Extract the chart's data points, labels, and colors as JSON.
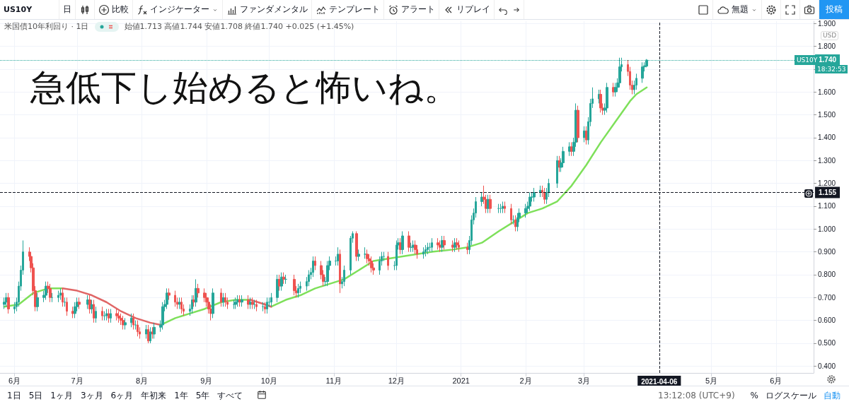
{
  "chart_data": {
    "type": "candlestick",
    "title": "急低下し始めると怖いね。",
    "subtitle": "米国債10年利回り · 1日",
    "x": [
      "2020-05-27",
      "2020-05-28",
      "2020-05-29",
      "2020-06-01",
      "2020-06-02",
      "2020-06-03",
      "2020-06-04",
      "2020-06-05",
      "2020-06-08",
      "2020-06-09",
      "2020-06-10",
      "2020-06-11",
      "2020-06-12",
      "2020-06-15",
      "2020-06-16",
      "2020-06-17",
      "2020-06-18",
      "2020-06-19",
      "2020-06-22",
      "2020-06-23",
      "2020-06-24",
      "2020-06-25",
      "2020-06-26",
      "2020-06-29",
      "2020-06-30",
      "2020-07-01",
      "2020-07-02",
      "2020-07-06",
      "2020-07-07",
      "2020-07-08",
      "2020-07-09",
      "2020-07-10",
      "2020-07-13",
      "2020-07-14",
      "2020-07-15",
      "2020-07-16",
      "2020-07-17",
      "2020-07-20",
      "2020-07-21",
      "2020-07-22",
      "2020-07-23",
      "2020-07-24",
      "2020-07-27",
      "2020-07-28",
      "2020-07-29",
      "2020-07-30",
      "2020-07-31",
      "2020-08-03",
      "2020-08-04",
      "2020-08-05",
      "2020-08-06",
      "2020-08-07",
      "2020-08-10",
      "2020-08-11",
      "2020-08-12",
      "2020-08-13",
      "2020-08-14",
      "2020-08-17",
      "2020-08-18",
      "2020-08-19",
      "2020-08-20",
      "2020-08-21",
      "2020-08-24",
      "2020-08-25",
      "2020-08-26",
      "2020-08-27",
      "2020-08-28",
      "2020-08-31",
      "2020-09-01",
      "2020-09-02",
      "2020-09-03",
      "2020-09-04",
      "2020-09-08",
      "2020-09-09",
      "2020-09-10",
      "2020-09-11",
      "2020-09-14",
      "2020-09-15",
      "2020-09-16",
      "2020-09-17",
      "2020-09-18",
      "2020-09-21",
      "2020-09-22",
      "2020-09-23",
      "2020-09-24",
      "2020-09-25",
      "2020-09-28",
      "2020-09-29",
      "2020-09-30",
      "2020-10-01",
      "2020-10-02",
      "2020-10-05",
      "2020-10-06",
      "2020-10-07",
      "2020-10-08",
      "2020-10-09",
      "2020-10-13",
      "2020-10-14",
      "2020-10-15",
      "2020-10-16",
      "2020-10-19",
      "2020-10-20",
      "2020-10-21",
      "2020-10-22",
      "2020-10-23",
      "2020-10-26",
      "2020-10-27",
      "2020-10-28",
      "2020-10-29",
      "2020-10-30",
      "2020-11-02",
      "2020-11-03",
      "2020-11-04",
      "2020-11-05",
      "2020-11-06",
      "2020-11-09",
      "2020-11-10",
      "2020-11-12",
      "2020-11-13",
      "2020-11-16",
      "2020-11-17",
      "2020-11-18",
      "2020-11-19",
      "2020-11-20",
      "2020-11-23",
      "2020-11-24",
      "2020-11-25",
      "2020-11-27",
      "2020-11-30",
      "2020-12-01",
      "2020-12-02",
      "2020-12-03",
      "2020-12-04",
      "2020-12-07",
      "2020-12-08",
      "2020-12-09",
      "2020-12-10",
      "2020-12-11",
      "2020-12-14",
      "2020-12-15",
      "2020-12-16",
      "2020-12-17",
      "2020-12-18",
      "2020-12-21",
      "2020-12-22",
      "2020-12-23",
      "2020-12-24",
      "2020-12-28",
      "2020-12-29",
      "2020-12-30",
      "2020-12-31",
      "2021-01-04",
      "2021-01-05",
      "2021-01-06",
      "2021-01-07",
      "2021-01-08",
      "2021-01-11",
      "2021-01-12",
      "2021-01-13",
      "2021-01-14",
      "2021-01-15",
      "2021-01-19",
      "2021-01-20",
      "2021-01-21",
      "2021-01-22",
      "2021-01-25",
      "2021-01-26",
      "2021-01-27",
      "2021-01-28",
      "2021-01-29",
      "2021-02-01",
      "2021-02-02",
      "2021-02-03",
      "2021-02-04",
      "2021-02-05",
      "2021-02-08",
      "2021-02-09",
      "2021-02-10",
      "2021-02-11",
      "2021-02-12",
      "2021-02-16",
      "2021-02-17",
      "2021-02-18",
      "2021-02-19",
      "2021-02-22",
      "2021-02-23",
      "2021-02-24",
      "2021-02-25",
      "2021-02-26",
      "2021-03-01",
      "2021-03-02",
      "2021-03-03",
      "2021-03-04",
      "2021-03-05",
      "2021-03-08",
      "2021-03-09",
      "2021-03-10",
      "2021-03-11",
      "2021-03-12",
      "2021-03-15",
      "2021-03-16",
      "2021-03-17",
      "2021-03-18",
      "2021-03-19",
      "2021-03-22",
      "2021-03-23",
      "2021-03-24",
      "2021-03-25",
      "2021-03-26",
      "2021-03-29",
      "2021-03-30",
      "2021-03-31"
    ],
    "ohlc": [
      [
        0.67,
        0.7,
        0.65,
        0.68
      ],
      [
        0.68,
        0.72,
        0.66,
        0.7
      ],
      [
        0.7,
        0.72,
        0.63,
        0.65
      ],
      [
        0.65,
        0.68,
        0.63,
        0.66
      ],
      [
        0.66,
        0.7,
        0.64,
        0.68
      ],
      [
        0.68,
        0.77,
        0.66,
        0.75
      ],
      [
        0.75,
        0.84,
        0.73,
        0.82
      ],
      [
        0.82,
        0.95,
        0.8,
        0.9
      ],
      [
        0.9,
        0.92,
        0.86,
        0.88
      ],
      [
        0.88,
        0.9,
        0.81,
        0.83
      ],
      [
        0.83,
        0.85,
        0.71,
        0.73
      ],
      [
        0.73,
        0.75,
        0.64,
        0.66
      ],
      [
        0.66,
        0.72,
        0.64,
        0.7
      ],
      [
        0.7,
        0.73,
        0.68,
        0.71
      ],
      [
        0.71,
        0.77,
        0.69,
        0.75
      ],
      [
        0.75,
        0.77,
        0.72,
        0.74
      ],
      [
        0.74,
        0.76,
        0.68,
        0.7
      ],
      [
        0.7,
        0.72,
        0.68,
        0.7
      ],
      [
        0.7,
        0.73,
        0.68,
        0.71
      ],
      [
        0.71,
        0.74,
        0.69,
        0.72
      ],
      [
        0.72,
        0.74,
        0.66,
        0.68
      ],
      [
        0.68,
        0.7,
        0.66,
        0.68
      ],
      [
        0.68,
        0.7,
        0.62,
        0.64
      ],
      [
        0.64,
        0.66,
        0.61,
        0.63
      ],
      [
        0.63,
        0.68,
        0.61,
        0.66
      ],
      [
        0.66,
        0.7,
        0.64,
        0.68
      ],
      [
        0.68,
        0.7,
        0.65,
        0.67
      ],
      [
        0.67,
        0.71,
        0.65,
        0.69
      ],
      [
        0.69,
        0.71,
        0.63,
        0.65
      ],
      [
        0.65,
        0.69,
        0.63,
        0.67
      ],
      [
        0.67,
        0.69,
        0.59,
        0.61
      ],
      [
        0.61,
        0.66,
        0.59,
        0.64
      ],
      [
        0.64,
        0.66,
        0.6,
        0.62
      ],
      [
        0.62,
        0.64,
        0.6,
        0.62
      ],
      [
        0.62,
        0.65,
        0.6,
        0.63
      ],
      [
        0.63,
        0.65,
        0.59,
        0.61
      ],
      [
        0.61,
        0.65,
        0.59,
        0.63
      ],
      [
        0.63,
        0.65,
        0.6,
        0.62
      ],
      [
        0.62,
        0.64,
        0.59,
        0.61
      ],
      [
        0.61,
        0.63,
        0.58,
        0.6
      ],
      [
        0.6,
        0.62,
        0.56,
        0.58
      ],
      [
        0.58,
        0.61,
        0.56,
        0.59
      ],
      [
        0.59,
        0.63,
        0.57,
        0.61
      ],
      [
        0.61,
        0.63,
        0.56,
        0.58
      ],
      [
        0.58,
        0.6,
        0.56,
        0.58
      ],
      [
        0.58,
        0.6,
        0.53,
        0.55
      ],
      [
        0.55,
        0.57,
        0.52,
        0.54
      ],
      [
        0.54,
        0.58,
        0.52,
        0.56
      ],
      [
        0.56,
        0.58,
        0.5,
        0.51
      ],
      [
        0.51,
        0.57,
        0.5,
        0.55
      ],
      [
        0.55,
        0.57,
        0.52,
        0.54
      ],
      [
        0.54,
        0.59,
        0.52,
        0.57
      ],
      [
        0.57,
        0.6,
        0.55,
        0.58
      ],
      [
        0.58,
        0.68,
        0.56,
        0.66
      ],
      [
        0.66,
        0.69,
        0.64,
        0.67
      ],
      [
        0.67,
        0.74,
        0.65,
        0.72
      ],
      [
        0.72,
        0.74,
        0.69,
        0.71
      ],
      [
        0.71,
        0.73,
        0.66,
        0.68
      ],
      [
        0.68,
        0.7,
        0.65,
        0.67
      ],
      [
        0.67,
        0.7,
        0.65,
        0.68
      ],
      [
        0.68,
        0.7,
        0.63,
        0.65
      ],
      [
        0.65,
        0.67,
        0.62,
        0.64
      ],
      [
        0.64,
        0.67,
        0.62,
        0.65
      ],
      [
        0.65,
        0.71,
        0.63,
        0.69
      ],
      [
        0.69,
        0.71,
        0.66,
        0.68
      ],
      [
        0.68,
        0.78,
        0.66,
        0.74
      ],
      [
        0.74,
        0.76,
        0.7,
        0.72
      ],
      [
        0.72,
        0.74,
        0.68,
        0.7
      ],
      [
        0.7,
        0.72,
        0.66,
        0.68
      ],
      [
        0.68,
        0.7,
        0.63,
        0.65
      ],
      [
        0.65,
        0.67,
        0.6,
        0.63
      ],
      [
        0.63,
        0.74,
        0.61,
        0.72
      ],
      [
        0.72,
        0.74,
        0.66,
        0.68
      ],
      [
        0.68,
        0.72,
        0.66,
        0.7
      ],
      [
        0.7,
        0.72,
        0.66,
        0.68
      ],
      [
        0.68,
        0.7,
        0.65,
        0.67
      ],
      [
        0.67,
        0.69,
        0.65,
        0.67
      ],
      [
        0.67,
        0.7,
        0.65,
        0.68
      ],
      [
        0.68,
        0.71,
        0.66,
        0.69
      ],
      [
        0.69,
        0.71,
        0.66,
        0.68
      ],
      [
        0.68,
        0.71,
        0.66,
        0.69
      ],
      [
        0.69,
        0.71,
        0.65,
        0.67
      ],
      [
        0.67,
        0.7,
        0.65,
        0.68
      ],
      [
        0.68,
        0.7,
        0.65,
        0.67
      ],
      [
        0.67,
        0.69,
        0.65,
        0.67
      ],
      [
        0.67,
        0.69,
        0.64,
        0.66
      ],
      [
        0.66,
        0.68,
        0.64,
        0.66
      ],
      [
        0.66,
        0.68,
        0.63,
        0.65
      ],
      [
        0.65,
        0.7,
        0.63,
        0.68
      ],
      [
        0.68,
        0.7,
        0.66,
        0.68
      ],
      [
        0.68,
        0.72,
        0.66,
        0.7
      ],
      [
        0.7,
        0.8,
        0.68,
        0.78
      ],
      [
        0.78,
        0.8,
        0.73,
        0.75
      ],
      [
        0.75,
        0.81,
        0.73,
        0.79
      ],
      [
        0.79,
        0.81,
        0.76,
        0.78
      ],
      [
        0.78,
        0.8,
        0.76,
        0.78
      ],
      [
        0.78,
        0.8,
        0.71,
        0.73
      ],
      [
        0.73,
        0.75,
        0.7,
        0.72
      ],
      [
        0.72,
        0.76,
        0.7,
        0.74
      ],
      [
        0.74,
        0.77,
        0.72,
        0.75
      ],
      [
        0.75,
        0.79,
        0.73,
        0.77
      ],
      [
        0.77,
        0.82,
        0.75,
        0.8
      ],
      [
        0.8,
        0.83,
        0.78,
        0.81
      ],
      [
        0.81,
        0.88,
        0.79,
        0.86
      ],
      [
        0.86,
        0.88,
        0.82,
        0.84
      ],
      [
        0.84,
        0.86,
        0.78,
        0.8
      ],
      [
        0.8,
        0.82,
        0.75,
        0.77
      ],
      [
        0.77,
        0.79,
        0.75,
        0.77
      ],
      [
        0.77,
        0.86,
        0.75,
        0.84
      ],
      [
        0.84,
        0.88,
        0.82,
        0.86
      ],
      [
        0.86,
        0.88,
        0.84,
        0.86
      ],
      [
        0.86,
        0.92,
        0.84,
        0.89
      ],
      [
        0.89,
        0.91,
        0.72,
        0.76
      ],
      [
        0.76,
        0.79,
        0.74,
        0.77
      ],
      [
        0.77,
        0.84,
        0.75,
        0.82
      ],
      [
        0.82,
        0.97,
        0.8,
        0.96
      ],
      [
        0.96,
        0.99,
        0.94,
        0.98
      ],
      [
        0.98,
        0.99,
        0.86,
        0.88
      ],
      [
        0.88,
        0.91,
        0.86,
        0.89
      ],
      [
        0.89,
        0.92,
        0.87,
        0.89
      ],
      [
        0.89,
        0.91,
        0.85,
        0.87
      ],
      [
        0.87,
        0.89,
        0.84,
        0.86
      ],
      [
        0.86,
        0.88,
        0.81,
        0.83
      ],
      [
        0.83,
        0.85,
        0.8,
        0.82
      ],
      [
        0.82,
        0.88,
        0.8,
        0.86
      ],
      [
        0.86,
        0.9,
        0.84,
        0.88
      ],
      [
        0.88,
        0.9,
        0.86,
        0.88
      ],
      [
        0.88,
        0.9,
        0.82,
        0.84
      ],
      [
        0.84,
        0.86,
        0.82,
        0.84
      ],
      [
        0.84,
        0.95,
        0.82,
        0.93
      ],
      [
        0.93,
        0.96,
        0.91,
        0.94
      ],
      [
        0.94,
        0.96,
        0.89,
        0.91
      ],
      [
        0.91,
        0.99,
        0.89,
        0.97
      ],
      [
        0.97,
        0.99,
        0.9,
        0.92
      ],
      [
        0.92,
        0.94,
        0.9,
        0.92
      ],
      [
        0.92,
        0.95,
        0.9,
        0.93
      ],
      [
        0.93,
        0.95,
        0.89,
        0.91
      ],
      [
        0.91,
        0.93,
        0.87,
        0.89
      ],
      [
        0.89,
        0.92,
        0.87,
        0.9
      ],
      [
        0.9,
        0.93,
        0.88,
        0.91
      ],
      [
        0.91,
        0.94,
        0.89,
        0.92
      ],
      [
        0.92,
        0.94,
        0.9,
        0.92
      ],
      [
        0.92,
        0.96,
        0.9,
        0.94
      ],
      [
        0.94,
        0.96,
        0.91,
        0.93
      ],
      [
        0.93,
        0.95,
        0.9,
        0.92
      ],
      [
        0.92,
        0.97,
        0.9,
        0.95
      ],
      [
        0.95,
        0.97,
        0.91,
        0.93
      ],
      [
        0.93,
        0.95,
        0.9,
        0.92
      ],
      [
        0.92,
        0.96,
        0.9,
        0.94
      ],
      [
        0.94,
        0.96,
        0.91,
        0.93
      ],
      [
        0.93,
        0.95,
        0.9,
        0.92
      ],
      [
        0.92,
        0.94,
        0.89,
        0.91
      ],
      [
        0.91,
        0.97,
        0.89,
        0.95
      ],
      [
        0.95,
        1.06,
        0.93,
        1.04
      ],
      [
        1.04,
        1.09,
        1.02,
        1.07
      ],
      [
        1.07,
        1.14,
        1.05,
        1.12
      ],
      [
        1.12,
        1.16,
        1.1,
        1.14
      ],
      [
        1.14,
        1.19,
        1.11,
        1.13
      ],
      [
        1.13,
        1.15,
        1.07,
        1.09
      ],
      [
        1.09,
        1.15,
        1.07,
        1.13
      ],
      [
        1.13,
        1.15,
        1.07,
        1.09
      ],
      [
        1.09,
        1.11,
        1.07,
        1.09
      ],
      [
        1.09,
        1.11,
        1.07,
        1.09
      ],
      [
        1.09,
        1.12,
        1.07,
        1.1
      ],
      [
        1.1,
        1.12,
        1.07,
        1.09
      ],
      [
        1.09,
        1.11,
        1.02,
        1.04
      ],
      [
        1.04,
        1.06,
        1.02,
        1.04
      ],
      [
        1.04,
        1.06,
        0.99,
        1.01
      ],
      [
        1.01,
        1.07,
        0.99,
        1.05
      ],
      [
        1.05,
        1.09,
        1.03,
        1.07
      ],
      [
        1.07,
        1.11,
        1.05,
        1.09
      ],
      [
        1.09,
        1.12,
        1.07,
        1.1
      ],
      [
        1.1,
        1.16,
        1.08,
        1.14
      ],
      [
        1.14,
        1.16,
        1.12,
        1.14
      ],
      [
        1.14,
        1.18,
        1.12,
        1.16
      ],
      [
        1.16,
        1.19,
        1.14,
        1.17
      ],
      [
        1.17,
        1.19,
        1.14,
        1.16
      ],
      [
        1.16,
        1.18,
        1.11,
        1.13
      ],
      [
        1.13,
        1.18,
        1.11,
        1.16
      ],
      [
        1.16,
        1.22,
        1.14,
        1.2
      ],
      [
        1.2,
        1.32,
        1.18,
        1.3
      ],
      [
        1.3,
        1.32,
        1.25,
        1.27
      ],
      [
        1.27,
        1.31,
        1.25,
        1.29
      ],
      [
        1.29,
        1.36,
        1.27,
        1.34
      ],
      [
        1.34,
        1.38,
        1.32,
        1.36
      ],
      [
        1.36,
        1.38,
        1.32,
        1.34
      ],
      [
        1.34,
        1.4,
        1.32,
        1.38
      ],
      [
        1.38,
        1.55,
        1.36,
        1.52
      ],
      [
        1.52,
        1.54,
        1.38,
        1.4
      ],
      [
        1.4,
        1.45,
        1.38,
        1.43
      ],
      [
        1.43,
        1.45,
        1.37,
        1.39
      ],
      [
        1.39,
        1.49,
        1.37,
        1.47
      ],
      [
        1.47,
        1.57,
        1.45,
        1.55
      ],
      [
        1.55,
        1.62,
        1.53,
        1.57
      ],
      [
        1.57,
        1.61,
        1.55,
        1.59
      ],
      [
        1.59,
        1.61,
        1.51,
        1.53
      ],
      [
        1.53,
        1.55,
        1.5,
        1.52
      ],
      [
        1.52,
        1.55,
        1.5,
        1.53
      ],
      [
        1.53,
        1.64,
        1.51,
        1.62
      ],
      [
        1.62,
        1.64,
        1.58,
        1.6
      ],
      [
        1.6,
        1.64,
        1.58,
        1.62
      ],
      [
        1.62,
        1.66,
        1.6,
        1.64
      ],
      [
        1.64,
        1.75,
        1.62,
        1.71
      ],
      [
        1.71,
        1.75,
        1.69,
        1.72
      ],
      [
        1.72,
        1.74,
        1.67,
        1.69
      ],
      [
        1.69,
        1.71,
        1.61,
        1.63
      ],
      [
        1.63,
        1.65,
        1.59,
        1.61
      ],
      [
        1.61,
        1.65,
        1.59,
        1.63
      ],
      [
        1.63,
        1.68,
        1.61,
        1.66
      ],
      [
        1.66,
        1.73,
        1.64,
        1.71
      ],
      [
        1.71,
        1.73,
        1.69,
        1.715
      ],
      [
        1.713,
        1.744,
        1.708,
        1.74
      ]
    ],
    "colors": [
      "#26a69a",
      "#26a69a",
      "#ef5350",
      "#26a69a",
      "#26a69a",
      "#26a69a",
      "#26a69a",
      "#26a69a",
      "#ef5350",
      "#ef5350",
      "#ef5350",
      "#ef5350",
      "#26a69a",
      "#26a69a",
      "#26a69a",
      "#ef5350",
      "#ef5350",
      "#26a69a",
      "#26a69a",
      "#26a69a",
      "#ef5350",
      "#26a69a",
      "#ef5350",
      "#ef5350",
      "#26a69a",
      "#26a69a",
      "#ef5350",
      "#26a69a",
      "#ef5350",
      "#26a69a",
      "#ef5350",
      "#26a69a",
      "#ef5350",
      "#26a69a",
      "#26a69a",
      "#ef5350",
      "#26a69a",
      "#ef5350",
      "#ef5350",
      "#ef5350",
      "#ef5350",
      "#26a69a",
      "#26a69a",
      "#ef5350",
      "#26a69a",
      "#ef5350",
      "#ef5350",
      "#26a69a",
      "#ef5350",
      "#26a69a",
      "#ef5350",
      "#26a69a",
      "#26a69a",
      "#26a69a",
      "#26a69a",
      "#26a69a",
      "#ef5350",
      "#ef5350",
      "#ef5350",
      "#26a69a",
      "#ef5350",
      "#ef5350",
      "#26a69a",
      "#26a69a",
      "#ef5350",
      "#26a69a",
      "#ef5350",
      "#ef5350",
      "#ef5350",
      "#ef5350",
      "#ef5350",
      "#26a69a",
      "#ef5350",
      "#26a69a",
      "#ef5350",
      "#ef5350",
      "#26a69a",
      "#26a69a",
      "#26a69a",
      "#ef5350",
      "#26a69a",
      "#ef5350",
      "#26a69a",
      "#ef5350",
      "#26a69a",
      "#ef5350",
      "#26a69a",
      "#ef5350",
      "#26a69a",
      "#26a69a",
      "#26a69a",
      "#26a69a",
      "#ef5350",
      "#26a69a",
      "#ef5350",
      "#26a69a",
      "#ef5350",
      "#ef5350",
      "#26a69a",
      "#26a69a",
      "#26a69a",
      "#26a69a",
      "#26a69a",
      "#26a69a",
      "#ef5350",
      "#ef5350",
      "#ef5350",
      "#26a69a",
      "#26a69a",
      "#26a69a",
      "#26a69a",
      "#26a69a",
      "#ef5350",
      "#26a69a",
      "#26a69a",
      "#26a69a",
      "#26a69a",
      "#ef5350",
      "#26a69a",
      "#26a69a",
      "#ef5350",
      "#ef5350",
      "#ef5350",
      "#ef5350",
      "#26a69a",
      "#26a69a",
      "#26a69a",
      "#ef5350",
      "#26a69a",
      "#26a69a",
      "#26a69a",
      "#ef5350",
      "#26a69a",
      "#ef5350",
      "#26a69a",
      "#26a69a",
      "#ef5350",
      "#ef5350",
      "#26a69a",
      "#26a69a",
      "#26a69a",
      "#26a69a",
      "#26a69a",
      "#ef5350",
      "#ef5350",
      "#26a69a",
      "#ef5350",
      "#ef5350",
      "#26a69a",
      "#ef5350",
      "#ef5350",
      "#ef5350",
      "#26a69a",
      "#26a69a",
      "#26a69a",
      "#26a69a",
      "#26a69a",
      "#ef5350",
      "#ef5350",
      "#26a69a",
      "#ef5350",
      "#26a69a",
      "#26a69a",
      "#26a69a",
      "#ef5350",
      "#ef5350",
      "#26a69a",
      "#ef5350",
      "#26a69a",
      "#26a69a",
      "#26a69a",
      "#26a69a",
      "#26a69a",
      "#26a69a",
      "#26a69a",
      "#26a69a",
      "#ef5350",
      "#ef5350",
      "#26a69a",
      "#26a69a",
      "#26a69a",
      "#ef5350",
      "#26a69a",
      "#26a69a",
      "#26a69a",
      "#ef5350",
      "#26a69a",
      "#26a69a",
      "#ef5350",
      "#26a69a",
      "#ef5350",
      "#26a69a",
      "#26a69a",
      "#26a69a",
      "#26a69a",
      "#ef5350",
      "#ef5350",
      "#26a69a",
      "#26a69a",
      "#ef5350",
      "#26a69a",
      "#26a69a",
      "#26a69a",
      "#26a69a",
      "#ef5350",
      "#ef5350",
      "#ef5350",
      "#26a69a",
      "#26a69a",
      "#26a69a",
      "#26a69a",
      "#26a69a"
    ],
    "series": [
      {
        "type": "line",
        "color": "#7ee05a",
        "x": [
          "2020-05-27",
          "2020-06-03",
          "2020-06-10",
          "2020-06-17",
          "2020-06-24",
          "2020-07-01",
          "2020-07-08",
          "2020-07-15",
          "2020-07-22",
          "2020-07-29",
          "2020-08-05",
          "2020-08-10",
          "2020-08-17",
          "2020-08-24",
          "2020-08-31",
          "2020-09-08",
          "2020-09-15",
          "2020-09-22",
          "2020-09-29",
          "2020-10-02",
          "2020-10-09",
          "2020-10-16",
          "2020-10-23",
          "2020-10-30",
          "2020-11-06",
          "2020-11-13",
          "2020-11-20",
          "2020-11-27",
          "2020-12-04",
          "2020-12-11",
          "2020-12-18",
          "2020-12-28",
          "2021-01-04",
          "2021-01-11",
          "2021-01-19",
          "2021-01-26",
          "2021-02-02",
          "2021-02-09",
          "2021-02-16",
          "2021-02-23",
          "2021-03-02",
          "2021-03-09",
          "2021-03-16",
          "2021-03-23",
          "2021-03-26",
          "2021-03-31"
        ],
        "values": [
          0.66,
          0.67,
          0.72,
          0.74,
          0.74,
          null,
          null,
          null,
          null,
          null,
          null,
          0.58,
          0.61,
          0.63,
          0.65,
          0.68,
          0.69,
          0.69,
          null,
          0.66,
          0.69,
          0.71,
          0.74,
          0.76,
          0.78,
          0.82,
          0.86,
          0.87,
          0.88,
          0.89,
          0.9,
          0.91,
          0.92,
          0.94,
          0.99,
          1.03,
          1.07,
          1.09,
          1.12,
          1.19,
          1.28,
          1.38,
          1.47,
          1.56,
          1.59,
          1.62
        ]
      },
      {
        "type": "line",
        "color": "#e06666",
        "x": [
          "2020-06-24",
          "2020-07-01",
          "2020-07-08",
          "2020-07-15",
          "2020-07-22",
          "2020-07-29",
          "2020-08-05",
          "2020-08-10"
        ],
        "values": [
          0.74,
          0.73,
          0.71,
          0.68,
          0.64,
          0.61,
          0.59,
          0.58
        ]
      },
      {
        "type": "line",
        "color": "#e06666",
        "x": [
          "2020-09-22",
          "2020-09-29",
          "2020-10-02"
        ],
        "values": [
          0.69,
          0.67,
          0.66
        ]
      }
    ],
    "xlim": [
      "2020-05-25",
      "2021-06-19"
    ],
    "xticks": [
      {
        "value": "2020-06-01",
        "label": "6月"
      },
      {
        "value": "2020-07-01",
        "label": "7月"
      },
      {
        "value": "2020-08-01",
        "label": "8月"
      },
      {
        "value": "2020-09-01",
        "label": "9月"
      },
      {
        "value": "2020-10-01",
        "label": "10月"
      },
      {
        "value": "2020-11-01",
        "label": "11月"
      },
      {
        "value": "2020-12-01",
        "label": "12月"
      },
      {
        "value": "2021-01-01",
        "label": "2021"
      },
      {
        "value": "2021-02-01",
        "label": "2月"
      },
      {
        "value": "2021-03-01",
        "label": "3月"
      },
      {
        "value": "2021-05-01",
        "label": "5月"
      },
      {
        "value": "2021-06-01",
        "label": "6月"
      }
    ],
    "ylim": [
      0.37,
      1.91
    ],
    "yticks": [
      {
        "value": 0.4,
        "label": "0.400"
      },
      {
        "value": 0.5,
        "label": "0.500"
      },
      {
        "value": 0.6,
        "label": "0.600"
      },
      {
        "value": 0.7,
        "label": "0.700"
      },
      {
        "value": 0.8,
        "label": "0.800"
      },
      {
        "value": 0.9,
        "label": "0.900"
      },
      {
        "value": 1.0,
        "label": "1.000"
      },
      {
        "value": 1.1,
        "label": "1.100"
      },
      {
        "value": 1.2,
        "label": "1.200"
      },
      {
        "value": 1.3,
        "label": "1.300"
      },
      {
        "value": 1.4,
        "label": "1.400"
      },
      {
        "value": 1.5,
        "label": "1.500"
      },
      {
        "value": 1.6,
        "label": "1.600"
      },
      {
        "value": 1.7,
        "label": null
      },
      {
        "value": 1.8,
        "label": "1.800"
      },
      {
        "value": 1.9,
        "label": "1.900"
      }
    ],
    "ref_lines": [
      {
        "axis": "y",
        "value": 1.74,
        "label": "1.740",
        "color": "#26a69a",
        "line_style": "dotted"
      },
      {
        "axis": "y",
        "value": 1.155,
        "label": "1.155",
        "color": "#131722",
        "line_style": "dashed"
      },
      {
        "axis": "x",
        "value": "2021-04-06",
        "label": "2021-04-06",
        "color": "#131722",
        "line_style": "dashed"
      }
    ],
    "annotations": [
      "US10Y",
      "日",
      "比較",
      "インジケーター",
      "ファンダメンタル",
      "テンプレート",
      "アラート",
      "リプレイ",
      "無題",
      "投稿",
      "始値1.713 高値1.744 安値1.708 終値1.740 +0.025 (+1.45%)",
      "USD",
      "US10Y",
      "18:32:53",
      "1日",
      "5日",
      "1ヶ月",
      "3ヶ月",
      "6ヶ月",
      "年初来",
      "1年",
      "5年",
      "すべて",
      "13:12:08 (UTC+9)",
      "%",
      "ログスケール",
      "自動"
    ],
    "grid": true,
    "marker": "none",
    "line_style": "solid"
  }
}
